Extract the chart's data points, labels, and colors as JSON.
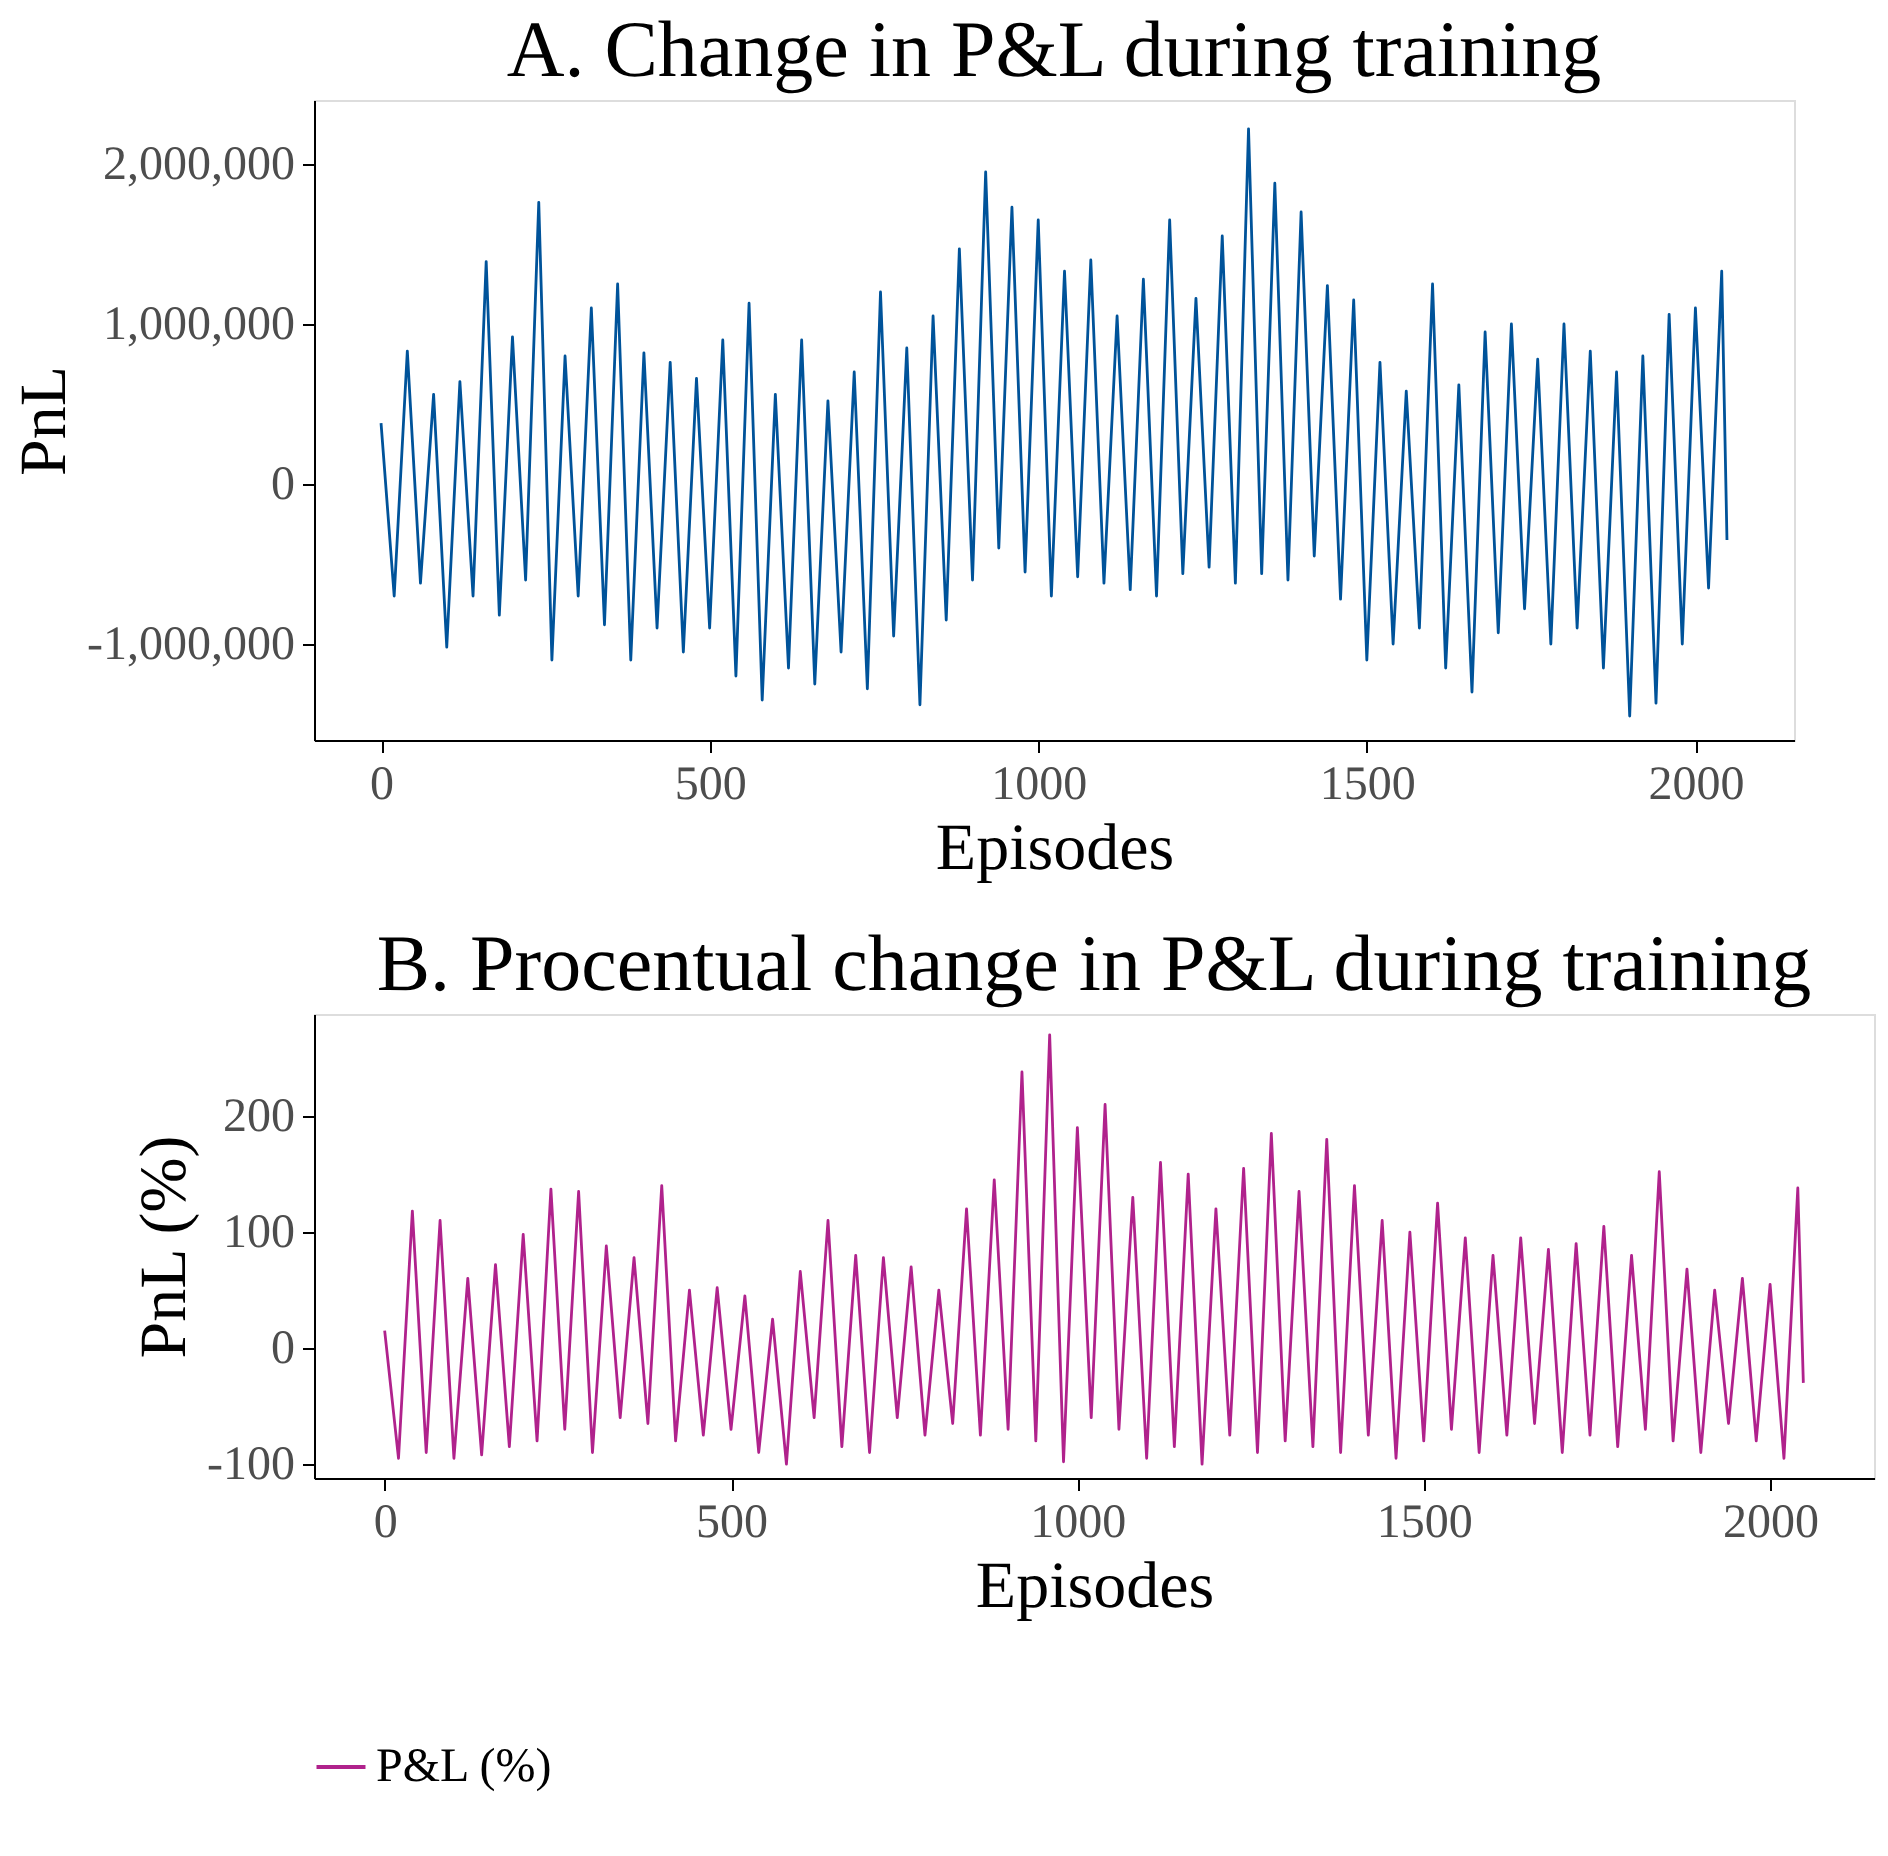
{
  "chart_data": [
    {
      "type": "line",
      "title": "A. Change in P&L during training",
      "xlabel": "Episodes",
      "ylabel": "PnL",
      "grid": false,
      "legend": false,
      "xlim": [
        -102,
        2150
      ],
      "xticks": [
        0,
        500,
        1000,
        1500,
        2000
      ],
      "ylim": [
        -1600000,
        2400000
      ],
      "yticks": [
        {
          "value": -1000000,
          "label": "-1,000,000"
        },
        0,
        {
          "value": 1000000,
          "label": "1,000,000"
        },
        {
          "value": 2000000,
          "label": "2,000,000"
        }
      ],
      "series": [
        {
          "color": "#00539a",
          "x": [
            0,
            20,
            40,
            60,
            80,
            100,
            120,
            140,
            160,
            180,
            200,
            220,
            240,
            260,
            280,
            300,
            320,
            340,
            360,
            380,
            400,
            420,
            440,
            460,
            480,
            500,
            520,
            540,
            560,
            580,
            600,
            620,
            640,
            660,
            680,
            700,
            720,
            740,
            760,
            780,
            800,
            820,
            840,
            860,
            880,
            900,
            920,
            940,
            960,
            980,
            1000,
            1020,
            1040,
            1060,
            1080,
            1100,
            1120,
            1140,
            1160,
            1180,
            1200,
            1220,
            1240,
            1260,
            1280,
            1300,
            1320,
            1340,
            1360,
            1380,
            1400,
            1420,
            1440,
            1460,
            1480,
            1500,
            1520,
            1540,
            1560,
            1580,
            1600,
            1620,
            1640,
            1660,
            1680,
            1700,
            1720,
            1740,
            1760,
            1780,
            1800,
            1820,
            1840,
            1860,
            1880,
            1900,
            1920,
            1940,
            1960,
            1980,
            2000,
            2020,
            2040,
            2048
          ],
          "values": [
            380000,
            -700000,
            830000,
            -620000,
            560000,
            -1020000,
            640000,
            -700000,
            1390000,
            -820000,
            920000,
            -600000,
            1760000,
            -1100000,
            800000,
            -700000,
            1100000,
            -880000,
            1250000,
            -1100000,
            820000,
            -900000,
            760000,
            -1050000,
            660000,
            -900000,
            900000,
            -1200000,
            1130000,
            -1350000,
            560000,
            -1150000,
            900000,
            -1250000,
            520000,
            -1050000,
            700000,
            -1280000,
            1200000,
            -950000,
            850000,
            -1380000,
            1050000,
            -850000,
            1470000,
            -600000,
            1950000,
            -400000,
            1730000,
            -550000,
            1650000,
            -700000,
            1330000,
            -580000,
            1400000,
            -620000,
            1050000,
            -660000,
            1280000,
            -700000,
            1650000,
            -560000,
            1160000,
            -520000,
            1550000,
            -620000,
            2220000,
            -560000,
            1880000,
            -600000,
            1700000,
            -450000,
            1240000,
            -720000,
            1150000,
            -1100000,
            760000,
            -1000000,
            580000,
            -900000,
            1250000,
            -1150000,
            620000,
            -1300000,
            950000,
            -930000,
            1000000,
            -780000,
            780000,
            -1000000,
            1000000,
            -900000,
            830000,
            -1150000,
            700000,
            -1450000,
            800000,
            -1370000,
            1060000,
            -1000000,
            1100000,
            -650000,
            1330000,
            -350000
          ]
        }
      ]
    },
    {
      "type": "line",
      "title": "B. Procentual change in P&L during training",
      "xlabel": "Episodes",
      "ylabel": "PnL (%)",
      "grid": false,
      "legend": "bottom",
      "xlim": [
        -102,
        2150
      ],
      "xticks": [
        0,
        500,
        1000,
        1500,
        2000
      ],
      "ylim": [
        -112,
        288
      ],
      "yticks": [
        -100,
        0,
        100,
        200
      ],
      "series": [
        {
          "name": "P&L (%)",
          "color": "#b0228c",
          "x": [
            0,
            20,
            40,
            60,
            80,
            100,
            120,
            140,
            160,
            180,
            200,
            220,
            240,
            260,
            280,
            300,
            320,
            340,
            360,
            380,
            400,
            420,
            440,
            460,
            480,
            500,
            520,
            540,
            560,
            580,
            600,
            620,
            640,
            660,
            680,
            700,
            720,
            740,
            760,
            780,
            800,
            820,
            840,
            860,
            880,
            900,
            920,
            940,
            960,
            980,
            1000,
            1020,
            1040,
            1060,
            1080,
            1100,
            1120,
            1140,
            1160,
            1180,
            1200,
            1220,
            1240,
            1260,
            1280,
            1300,
            1320,
            1340,
            1360,
            1380,
            1400,
            1420,
            1440,
            1460,
            1480,
            1500,
            1520,
            1540,
            1560,
            1580,
            1600,
            1620,
            1640,
            1660,
            1680,
            1700,
            1720,
            1740,
            1760,
            1780,
            1800,
            1820,
            1840,
            1860,
            1880,
            1900,
            1920,
            1940,
            1960,
            1980,
            2000,
            2020,
            2040,
            2048
          ],
          "values": [
            15,
            -95,
            118,
            -90,
            110,
            -95,
            60,
            -92,
            72,
            -85,
            98,
            -80,
            137,
            -70,
            135,
            -90,
            88,
            -60,
            78,
            -65,
            140,
            -80,
            50,
            -75,
            52,
            -70,
            45,
            -90,
            25,
            -100,
            66,
            -60,
            110,
            -85,
            80,
            -90,
            78,
            -60,
            70,
            -75,
            50,
            -65,
            120,
            -75,
            145,
            -70,
            238,
            -80,
            270,
            -98,
            190,
            -60,
            210,
            -70,
            130,
            -95,
            160,
            -85,
            150,
            -100,
            120,
            -75,
            155,
            -90,
            185,
            -80,
            135,
            -85,
            180,
            -90,
            140,
            -75,
            110,
            -95,
            100,
            -80,
            125,
            -70,
            95,
            -90,
            80,
            -75,
            95,
            -65,
            85,
            -90,
            90,
            -75,
            105,
            -85,
            80,
            -70,
            152,
            -80,
            68,
            -90,
            50,
            -65,
            60,
            -80,
            55,
            -95,
            138,
            -30
          ]
        }
      ]
    }
  ]
}
